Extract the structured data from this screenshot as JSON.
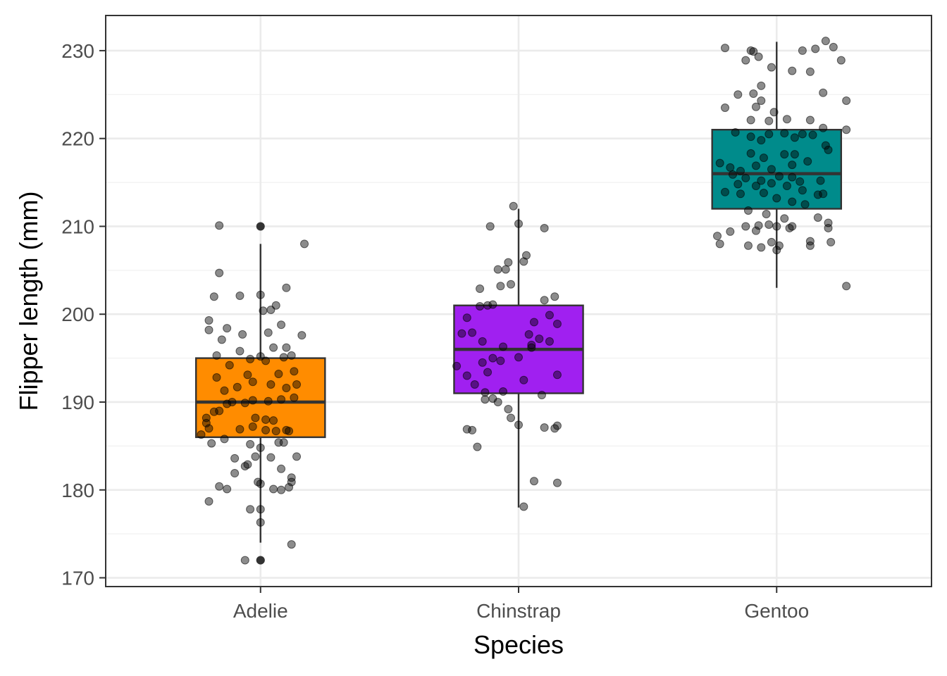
{
  "chart_data": {
    "type": "boxplot",
    "xlabel": "Species",
    "ylabel": "Flipper length (mm)",
    "ylim": [
      169,
      234
    ],
    "y_ticks": [
      170,
      180,
      190,
      200,
      210,
      220,
      230
    ],
    "categories": [
      "Adelie",
      "Chinstrap",
      "Gentoo"
    ],
    "grid": true,
    "legend": "none",
    "boxes": [
      {
        "category": "Adelie",
        "fill": "#FF8C00",
        "whisker_low": 174,
        "q1": 186,
        "median": 190,
        "q3": 195,
        "whisker_high": 208,
        "outliers": [
          172,
          210
        ]
      },
      {
        "category": "Chinstrap",
        "fill": "#A020F0",
        "whisker_low": 178,
        "q1": 191,
        "median": 196,
        "q3": 201,
        "whisker_high": 212,
        "outliers": []
      },
      {
        "category": "Gentoo",
        "fill": "#008B8B",
        "whisker_low": 203,
        "q1": 212,
        "median": 216,
        "q3": 221,
        "whisker_high": 231,
        "outliers": []
      }
    ],
    "points": [
      [
        [
          -0.2,
          178.7
        ],
        [
          -0.16,
          180.4
        ],
        [
          -0.13,
          180.1
        ],
        [
          -0.1,
          181.9
        ],
        [
          -0.04,
          177.8
        ],
        [
          0.0,
          177.8
        ],
        [
          0.0,
          176.3
        ],
        [
          0.12,
          173.8
        ],
        [
          -0.06,
          172.0
        ],
        [
          0.0,
          172.0
        ],
        [
          0.05,
          180.1
        ],
        [
          0.08,
          180.0
        ],
        [
          0.11,
          180.3
        ],
        [
          0.12,
          180.9
        ],
        [
          0.12,
          181.4
        ],
        [
          0.08,
          182.4
        ],
        [
          -0.06,
          182.7
        ],
        [
          -0.05,
          182.9
        ],
        [
          -0.01,
          180.9
        ],
        [
          0.0,
          180.7
        ],
        [
          -0.1,
          183.6
        ],
        [
          -0.02,
          183.8
        ],
        [
          0.04,
          183.7
        ],
        [
          0.14,
          183.8
        ],
        [
          -0.04,
          185.2
        ],
        [
          0.0,
          184.8
        ],
        [
          0.07,
          185.4
        ],
        [
          0.09,
          185.4
        ],
        [
          -0.19,
          185.3
        ],
        [
          -0.14,
          185.8
        ],
        [
          -0.2,
          187.0
        ],
        [
          -0.21,
          187.6
        ],
        [
          -0.18,
          188.9
        ],
        [
          -0.16,
          189.0
        ],
        [
          -0.08,
          186.9
        ],
        [
          -0.03,
          187.2
        ],
        [
          0.02,
          186.8
        ],
        [
          0.06,
          186.7
        ],
        [
          0.1,
          186.8
        ],
        [
          0.11,
          186.7
        ],
        [
          -0.13,
          189.8
        ],
        [
          -0.11,
          190.0
        ],
        [
          -0.06,
          189.9
        ],
        [
          -0.03,
          190.2
        ],
        [
          0.03,
          190.1
        ],
        [
          0.08,
          190.3
        ],
        [
          0.13,
          190.5
        ],
        [
          -0.02,
          188.2
        ],
        [
          0.02,
          188.0
        ],
        [
          0.05,
          187.9
        ],
        [
          -0.14,
          191.3
        ],
        [
          -0.09,
          191.7
        ],
        [
          -0.03,
          192.3
        ],
        [
          0.04,
          192.0
        ],
        [
          0.1,
          191.6
        ],
        [
          0.14,
          192.0
        ],
        [
          -0.17,
          192.8
        ],
        [
          -0.05,
          193.1
        ],
        [
          0.07,
          193.2
        ],
        [
          0.13,
          193.5
        ],
        [
          -0.12,
          194.2
        ],
        [
          -0.04,
          194.9
        ],
        [
          0.02,
          194.7
        ],
        [
          0.09,
          195.1
        ],
        [
          0.12,
          195.3
        ],
        [
          -0.17,
          195.3
        ],
        [
          -0.08,
          195.8
        ],
        [
          0.0,
          195.2
        ],
        [
          0.05,
          196.2
        ],
        [
          0.1,
          196.2
        ],
        [
          -0.2,
          198.2
        ],
        [
          -0.15,
          197.1
        ],
        [
          -0.07,
          197.7
        ],
        [
          0.03,
          197.9
        ],
        [
          0.08,
          198.8
        ],
        [
          0.16,
          197.6
        ],
        [
          -0.2,
          199.3
        ],
        [
          -0.13,
          198.4
        ],
        [
          0.01,
          200.4
        ],
        [
          0.04,
          200.5
        ],
        [
          -0.18,
          202.0
        ],
        [
          0.0,
          202.2
        ],
        [
          0.06,
          201.0
        ],
        [
          0.1,
          203.0
        ],
        [
          -0.16,
          204.7
        ],
        [
          -0.08,
          202.1
        ],
        [
          0.17,
          208.0
        ],
        [
          -0.16,
          210.1
        ],
        [
          -0.23,
          186.3
        ],
        [
          -0.21,
          188.2
        ]
      ],
      [
        [
          -0.16,
          184.9
        ],
        [
          -0.2,
          186.9
        ],
        [
          -0.18,
          186.8
        ],
        [
          -0.03,
          188.2
        ],
        [
          -0.04,
          189.2
        ],
        [
          -0.08,
          190.0
        ],
        [
          -0.1,
          190.4
        ],
        [
          -0.13,
          190.3
        ],
        [
          -0.13,
          191.1
        ],
        [
          -0.06,
          191.2
        ],
        [
          0.02,
          178.1
        ],
        [
          0.06,
          181.0
        ],
        [
          0.15,
          180.8
        ],
        [
          0.1,
          187.1
        ],
        [
          0.14,
          187.0
        ],
        [
          0.15,
          187.3
        ],
        [
          0.0,
          187.4
        ],
        [
          -0.17,
          192.0
        ],
        [
          -0.2,
          193.0
        ],
        [
          -0.12,
          193.4
        ],
        [
          -0.24,
          194.1
        ],
        [
          -0.22,
          197.8
        ],
        [
          -0.14,
          194.5
        ],
        [
          -0.1,
          195.0
        ],
        [
          -0.06,
          196.3
        ],
        [
          0.0,
          195.1
        ],
        [
          0.05,
          196.5
        ],
        [
          0.08,
          197.2
        ],
        [
          0.12,
          196.9
        ],
        [
          0.15,
          198.9
        ],
        [
          -0.2,
          199.6
        ],
        [
          -0.15,
          200.9
        ],
        [
          -0.12,
          201.0
        ],
        [
          -0.1,
          201.1
        ],
        [
          0.04,
          197.7
        ],
        [
          0.06,
          199.1
        ],
        [
          0.12,
          199.9
        ],
        [
          0.1,
          201.6
        ],
        [
          0.14,
          202.0
        ],
        [
          -0.07,
          203.2
        ],
        [
          -0.15,
          202.9
        ],
        [
          -0.03,
          203.4
        ],
        [
          -0.05,
          205.1
        ],
        [
          -0.04,
          205.9
        ],
        [
          -0.08,
          205.1
        ],
        [
          0.02,
          206.0
        ],
        [
          0.03,
          206.7
        ],
        [
          0.0,
          210.3
        ],
        [
          -0.11,
          210.0
        ],
        [
          -0.02,
          212.3
        ],
        [
          0.1,
          209.8
        ],
        [
          0.02,
          192.5
        ],
        [
          0.05,
          196.2
        ],
        [
          0.15,
          193.1
        ],
        [
          -0.07,
          194.7
        ],
        [
          -0.18,
          197.9
        ],
        [
          -0.14,
          196.9
        ],
        [
          0.09,
          190.8
        ]
      ],
      [
        [
          -0.2,
          230.3
        ],
        [
          -0.1,
          230.0
        ],
        [
          -0.09,
          229.9
        ],
        [
          -0.07,
          229.3
        ],
        [
          0.1,
          230.0
        ],
        [
          0.15,
          230.2
        ],
        [
          0.19,
          231.1
        ],
        [
          0.22,
          230.4
        ],
        [
          -0.12,
          228.9
        ],
        [
          -0.02,
          228.1
        ],
        [
          0.06,
          227.7
        ],
        [
          0.13,
          227.6
        ],
        [
          0.25,
          228.9
        ],
        [
          0.18,
          225.2
        ],
        [
          -0.06,
          226.0
        ],
        [
          -0.15,
          225.0
        ],
        [
          -0.09,
          225.1
        ],
        [
          -0.06,
          224.3
        ],
        [
          0.27,
          224.3
        ],
        [
          -0.2,
          223.5
        ],
        [
          -0.08,
          223.6
        ],
        [
          -0.01,
          223.0
        ],
        [
          -0.1,
          222.1
        ],
        [
          -0.03,
          222.0
        ],
        [
          0.04,
          222.2
        ],
        [
          0.13,
          222.1
        ],
        [
          0.1,
          220.5
        ],
        [
          0.14,
          220.4
        ],
        [
          -0.16,
          220.7
        ],
        [
          -0.1,
          220.2
        ],
        [
          -0.06,
          219.8
        ],
        [
          -0.03,
          220.5
        ],
        [
          0.03,
          220.6
        ],
        [
          0.07,
          220.1
        ],
        [
          0.19,
          219.2
        ],
        [
          0.2,
          218.7
        ],
        [
          -0.1,
          218.3
        ],
        [
          -0.05,
          217.8
        ],
        [
          0.03,
          218.2
        ],
        [
          0.07,
          218.2
        ],
        [
          -0.22,
          217.2
        ],
        [
          -0.18,
          216.7
        ],
        [
          -0.14,
          216.3
        ],
        [
          -0.08,
          216.9
        ],
        [
          -0.02,
          216.5
        ],
        [
          0.06,
          217.0
        ],
        [
          0.12,
          217.4
        ],
        [
          -0.17,
          215.9
        ],
        [
          -0.12,
          215.5
        ],
        [
          -0.06,
          215.2
        ],
        [
          0.01,
          215.7
        ],
        [
          0.06,
          215.6
        ],
        [
          0.09,
          215.1
        ],
        [
          0.17,
          215.2
        ],
        [
          -0.15,
          214.8
        ],
        [
          -0.08,
          214.6
        ],
        [
          -0.02,
          214.9
        ],
        [
          0.04,
          214.6
        ],
        [
          0.1,
          214.1
        ],
        [
          0.16,
          213.6
        ],
        [
          0.18,
          213.7
        ],
        [
          -0.2,
          213.9
        ],
        [
          -0.14,
          213.7
        ],
        [
          -0.05,
          213.8
        ],
        [
          0.0,
          213.2
        ],
        [
          0.06,
          212.8
        ],
        [
          0.11,
          212.5
        ],
        [
          -0.11,
          211.8
        ],
        [
          -0.04,
          211.4
        ],
        [
          0.03,
          210.9
        ],
        [
          0.06,
          210.0
        ],
        [
          -0.12,
          210.0
        ],
        [
          -0.07,
          210.1
        ],
        [
          -0.03,
          210.2
        ],
        [
          0.0,
          210.0
        ],
        [
          0.05,
          209.8
        ],
        [
          0.2,
          209.8
        ],
        [
          -0.18,
          209.4
        ],
        [
          -0.08,
          209.5
        ],
        [
          -0.23,
          208.9
        ],
        [
          -0.22,
          208.0
        ],
        [
          -0.11,
          207.8
        ],
        [
          -0.02,
          208.2
        ],
        [
          0.01,
          207.8
        ],
        [
          0.13,
          207.8
        ],
        [
          0.13,
          208.3
        ],
        [
          0.21,
          208.2
        ],
        [
          -0.06,
          207.6
        ],
        [
          0.0,
          207.3
        ],
        [
          0.27,
          203.2
        ],
        [
          0.27,
          221.0
        ],
        [
          0.18,
          221.2
        ],
        [
          0.16,
          211.0
        ],
        [
          0.2,
          210.4
        ]
      ]
    ]
  }
}
